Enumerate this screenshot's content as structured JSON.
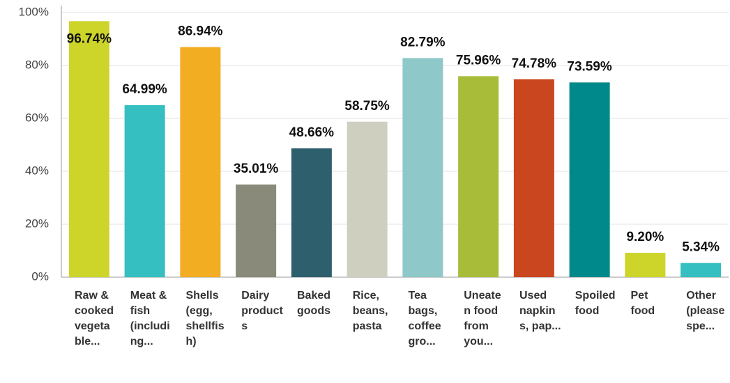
{
  "chart_data": {
    "type": "bar",
    "categories": [
      "Raw & cooked vegetable...",
      "Meat & fish (including...",
      "Shells (egg, shellfish)",
      "Dairy products",
      "Baked goods",
      "Rice, beans, pasta",
      "Tea bags, coffee gro...",
      "Uneaten food from you...",
      "Used napkins, pap...",
      "Spoiled food",
      "Pet food",
      "Other (please spe..."
    ],
    "values": [
      96.74,
      64.99,
      86.94,
      35.01,
      48.66,
      58.75,
      82.79,
      75.96,
      74.78,
      73.59,
      9.2,
      5.34
    ],
    "value_labels": [
      "96.74%",
      "64.99%",
      "86.94%",
      "35.01%",
      "48.66%",
      "58.75%",
      "82.79%",
      "75.96%",
      "74.78%",
      "73.59%",
      "9.20%",
      "5.34%"
    ],
    "colors": [
      "#cdd42a",
      "#35bfc0",
      "#f3ad22",
      "#8a8a7a",
      "#2e5f6c",
      "#cfcfc0",
      "#8ec8c9",
      "#a8bc3a",
      "#c9461e",
      "#00898a",
      "#cdd42a",
      "#35bfc0"
    ],
    "ylim": [
      0,
      100
    ],
    "yticks": [
      {
        "value": 0,
        "label": "0%"
      },
      {
        "value": 20,
        "label": "20%"
      },
      {
        "value": 40,
        "label": "40%"
      },
      {
        "value": 60,
        "label": "60%"
      },
      {
        "value": 80,
        "label": "80%"
      },
      {
        "value": 100,
        "label": "100%"
      }
    ],
    "grid": true
  }
}
